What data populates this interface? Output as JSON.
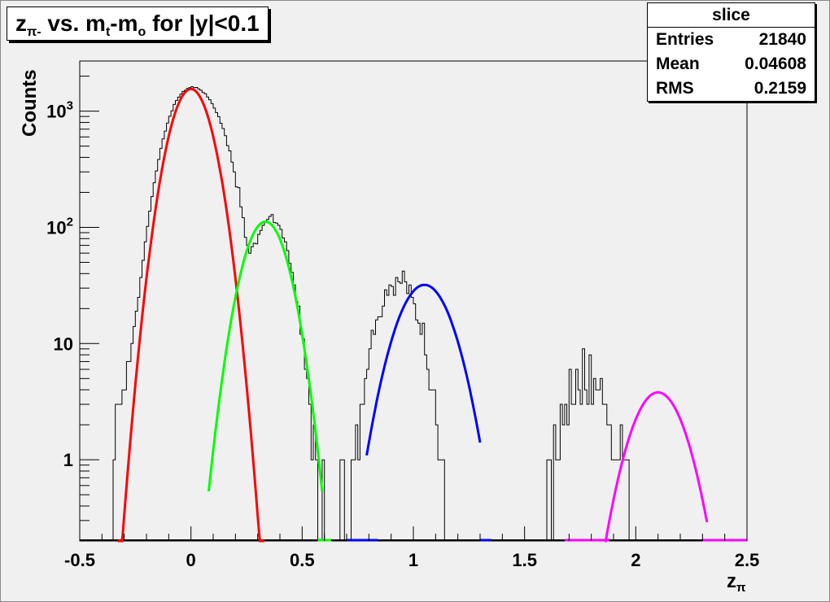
{
  "title": {
    "prefix": "z",
    "prefix_sub": "π-",
    "middle": " vs. m",
    "middle_sub": "t",
    "suffix_pre": "-m",
    "suffix_sub": "o",
    "suffix": " for |y|<0.1"
  },
  "stats": {
    "header": "slice",
    "rows": [
      {
        "label": "Entries",
        "value": "21840"
      },
      {
        "label": "Mean",
        "value": "0.04608"
      },
      {
        "label": "RMS",
        "value": "0.2159"
      }
    ]
  },
  "chart_data": {
    "type": "line",
    "title": "zπ- vs. mt-mo for |y|<0.1",
    "xlabel": "zπ",
    "ylabel": "Counts",
    "xlim": [
      -0.5,
      2.5
    ],
    "ylim": [
      0.2,
      2700
    ],
    "yscale": "log",
    "x_ticks": [
      "-0.5",
      "0",
      "0.5",
      "1",
      "1.5",
      "2",
      "2.5"
    ],
    "y_ticks": [
      {
        "value": 1,
        "base": "1",
        "exp": ""
      },
      {
        "value": 10,
        "base": "10",
        "exp": ""
      },
      {
        "value": 100,
        "base": "10",
        "exp": "2"
      },
      {
        "value": 1000,
        "base": "10",
        "exp": "3"
      }
    ],
    "histogram": {
      "color": "#000000",
      "x_start": -0.35,
      "bin_width": 0.01,
      "counts": [
        1,
        3,
        3,
        3,
        4,
        4,
        7,
        7,
        10,
        14,
        19,
        25,
        37,
        52,
        75,
        102,
        138,
        184,
        242,
        306,
        384,
        478,
        577,
        674,
        789,
        904,
        1007,
        1142,
        1234,
        1319,
        1402,
        1478,
        1511,
        1565,
        1590,
        1622,
        1595,
        1600,
        1555,
        1512,
        1448,
        1409,
        1322,
        1254,
        1162,
        1062,
        971,
        897,
        787,
        709,
        615,
        505,
        455,
        364,
        300,
        223,
        220,
        150,
        121,
        82,
        70,
        60,
        68,
        73,
        72,
        87,
        94,
        104,
        110,
        117,
        124,
        129,
        110,
        109,
        104,
        96,
        81,
        75,
        63,
        49,
        41,
        32,
        23,
        21,
        12,
        11,
        6,
        5,
        3,
        1,
        2,
        1,
        0,
        0,
        1,
        0,
        0,
        0,
        0,
        0,
        0,
        0,
        1,
        1,
        0,
        0,
        0,
        1,
        1,
        2,
        1,
        3,
        3,
        5,
        6,
        9,
        13,
        12,
        16,
        17,
        17,
        21,
        29,
        26,
        32,
        31,
        26,
        37,
        34,
        33,
        42,
        34,
        27,
        32,
        25,
        22,
        16,
        15,
        12,
        15,
        8,
        6,
        4,
        4,
        4,
        2,
        1,
        1,
        1,
        0,
        0,
        0,
        0,
        0,
        0,
        0,
        0,
        0,
        0,
        0,
        0,
        0,
        0,
        0,
        0,
        0,
        0,
        0,
        0,
        0,
        0,
        0,
        0,
        0,
        0,
        0,
        0,
        0,
        0,
        0,
        0,
        0,
        0,
        0,
        0,
        0,
        0,
        0,
        0,
        0,
        0,
        0,
        0,
        0,
        0,
        1,
        1,
        0,
        2,
        1,
        1,
        3,
        2,
        3,
        2,
        6,
        3,
        3,
        6,
        4,
        3,
        9,
        4,
        3,
        8,
        3,
        5,
        4,
        4,
        5,
        3,
        3,
        2,
        2,
        1,
        1,
        1,
        1,
        2,
        1,
        1,
        1,
        0,
        0,
        0,
        0,
        0,
        0,
        0,
        0,
        0,
        0,
        0,
        0,
        0,
        0,
        0,
        0,
        0,
        0,
        0
      ]
    },
    "series": [
      {
        "name": "",
        "color": "#ff0000",
        "amplitude": 1550,
        "mean": 0.0,
        "sigma": 0.073,
        "xmin": -0.33,
        "xmax": 0.33
      },
      {
        "name": "",
        "color": "#00ff00",
        "amplitude": 112,
        "mean": 0.335,
        "sigma": 0.078,
        "xmin": 0.08,
        "xmax": 0.59
      },
      {
        "name": "",
        "color": "#0000ff",
        "amplitude": 32,
        "mean": 1.05,
        "sigma": 0.1,
        "xmin": 0.79,
        "xmax": 1.3
      },
      {
        "name": "",
        "color": "#ff00ff",
        "amplitude": 3.8,
        "mean": 2.1,
        "sigma": 0.097,
        "xmin": 1.86,
        "xmax": 2.32
      }
    ],
    "fit_baselines": [
      {
        "color": "#00ff00",
        "x1": 0.57,
        "x2": 0.63
      },
      {
        "color": "#0000ff",
        "x1": 0.7,
        "x2": 0.84
      },
      {
        "color": "#0000ff",
        "x1": 1.3,
        "x2": 1.35
      },
      {
        "color": "#ff00ff",
        "x1": 1.68,
        "x2": 1.88
      },
      {
        "color": "#ff00ff",
        "x1": 2.3,
        "x2": 2.5
      }
    ],
    "grid": false
  }
}
